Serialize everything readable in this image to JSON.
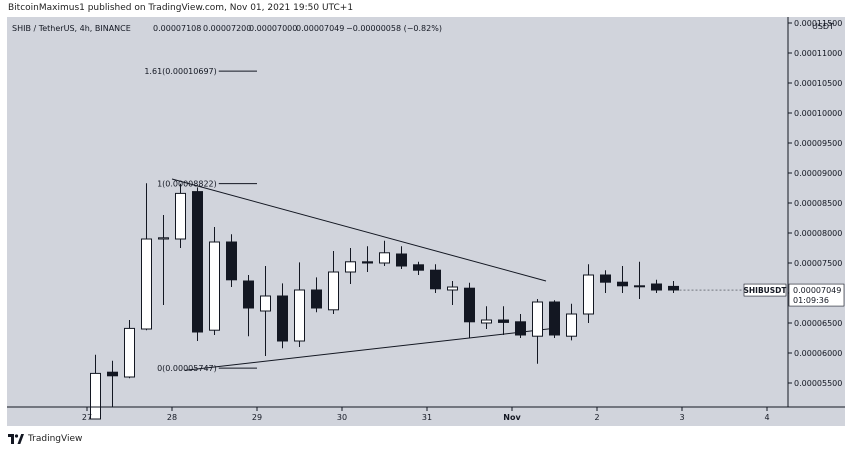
{
  "header": {
    "publish_line": "BitcoinMaximus1 published on TradingView.com, Nov 01, 2021 19:50 UTC+1"
  },
  "legend": {
    "symbol": "SHIB / TetherUS, 4h, BINANCE",
    "open": "0.00007108",
    "high": "0.00007200",
    "low": "0.00007000",
    "close": "0.00007049",
    "change": "−0.00000058 (−0.82%)"
  },
  "price_axis": {
    "currency": "USDT",
    "ticks": [
      "0.00011500",
      "0.00011000",
      "0.00010500",
      "0.00010000",
      "0.00009500",
      "0.00009000",
      "0.00008500",
      "0.00008000",
      "0.00007500",
      "0.00007000",
      "0.00006500",
      "0.00006000",
      "0.00005500"
    ],
    "symbol_tag": "SHIBUSDT",
    "last_price": "0.00007049",
    "countdown": "01:09:36"
  },
  "time_axis": {
    "ticks": [
      "27",
      "28",
      "29",
      "30",
      "31",
      "Nov",
      "2",
      "3",
      "4"
    ]
  },
  "fib_levels": [
    {
      "label": "1.61(0.00010697)"
    },
    {
      "label": "1(0.00008822)"
    },
    {
      "label": "0(0.00005747)"
    }
  ],
  "footer": {
    "brand": "TradingView"
  },
  "colors": {
    "background": "#d1d4dc",
    "bull": "#ffffff",
    "bear": "#131722",
    "line": "#131722"
  },
  "chart_data": {
    "type": "candlestick",
    "title": "SHIB / TetherUS, 4h, BINANCE",
    "ylabel": "USDT",
    "ylim": [
      5.1e-05,
      0.000116
    ],
    "x_unit_note": "x in days from 27 Oct 2021, one candle per 4h",
    "candles": [
      {
        "x": 0.1,
        "open": 4.9e-05,
        "high": 5.97e-05,
        "low": 4.9e-05,
        "close": 5.66e-05
      },
      {
        "x": 0.3,
        "open": 5.68e-05,
        "high": 5.87e-05,
        "low": 5.1e-05,
        "close": 5.62e-05
      },
      {
        "x": 0.5,
        "open": 5.6e-05,
        "high": 6.55e-05,
        "low": 5.58e-05,
        "close": 6.41e-05
      },
      {
        "x": 0.7,
        "open": 6.4e-05,
        "high": 8.83e-05,
        "low": 6.38e-05,
        "close": 7.9e-05
      },
      {
        "x": 0.9,
        "open": 7.9e-05,
        "high": 8.3e-05,
        "low": 6.8e-05,
        "close": 7.92e-05
      },
      {
        "x": 1.1,
        "open": 7.9e-05,
        "high": 8.82e-05,
        "low": 7.75e-05,
        "close": 8.66e-05
      },
      {
        "x": 1.3,
        "open": 8.69e-05,
        "high": 8.76e-05,
        "low": 6.2e-05,
        "close": 6.35e-05
      },
      {
        "x": 1.5,
        "open": 6.38e-05,
        "high": 8.1e-05,
        "low": 6.3e-05,
        "close": 7.85e-05
      },
      {
        "x": 1.7,
        "open": 7.85e-05,
        "high": 7.98e-05,
        "low": 7.1e-05,
        "close": 7.22e-05
      },
      {
        "x": 1.9,
        "open": 7.2e-05,
        "high": 7.3e-05,
        "low": 6.28e-05,
        "close": 6.75e-05
      },
      {
        "x": 2.1,
        "open": 6.7e-05,
        "high": 7.45e-05,
        "low": 5.95e-05,
        "close": 6.95e-05
      },
      {
        "x": 2.3,
        "open": 6.95e-05,
        "high": 7.16e-05,
        "low": 6.08e-05,
        "close": 6.2e-05
      },
      {
        "x": 2.5,
        "open": 6.2e-05,
        "high": 7.51e-05,
        "low": 6.1e-05,
        "close": 7.05e-05
      },
      {
        "x": 2.7,
        "open": 7.05e-05,
        "high": 7.26e-05,
        "low": 6.68e-05,
        "close": 6.75e-05
      },
      {
        "x": 2.9,
        "open": 6.72e-05,
        "high": 7.7e-05,
        "low": 6.65e-05,
        "close": 7.35e-05
      },
      {
        "x": 3.1,
        "open": 7.35e-05,
        "high": 7.75e-05,
        "low": 7.15e-05,
        "close": 7.52e-05
      },
      {
        "x": 3.3,
        "open": 7.52e-05,
        "high": 7.78e-05,
        "low": 7.35e-05,
        "close": 7.5e-05
      },
      {
        "x": 3.5,
        "open": 7.5e-05,
        "high": 7.87e-05,
        "low": 7.45e-05,
        "close": 7.67e-05
      },
      {
        "x": 3.7,
        "open": 7.65e-05,
        "high": 7.78e-05,
        "low": 7.4e-05,
        "close": 7.45e-05
      },
      {
        "x": 3.9,
        "open": 7.47e-05,
        "high": 7.52e-05,
        "low": 7.3e-05,
        "close": 7.38e-05
      },
      {
        "x": 4.1,
        "open": 7.38e-05,
        "high": 7.48e-05,
        "low": 7e-05,
        "close": 7.07e-05
      },
      {
        "x": 4.3,
        "open": 7.05e-05,
        "high": 7.2e-05,
        "low": 6.8e-05,
        "close": 7.1e-05
      },
      {
        "x": 4.5,
        "open": 7.08e-05,
        "high": 7.17e-05,
        "low": 6.25e-05,
        "close": 6.52e-05
      },
      {
        "x": 4.7,
        "open": 6.5e-05,
        "high": 6.78e-05,
        "low": 6.4e-05,
        "close": 6.55e-05
      },
      {
        "x": 4.9,
        "open": 6.55e-05,
        "high": 6.78e-05,
        "low": 6.3e-05,
        "close": 6.51e-05
      },
      {
        "x": 5.1,
        "open": 6.52e-05,
        "high": 6.65e-05,
        "low": 6.25e-05,
        "close": 6.3e-05
      },
      {
        "x": 5.3,
        "open": 6.28e-05,
        "high": 6.9e-05,
        "low": 5.82e-05,
        "close": 6.85e-05
      },
      {
        "x": 5.5,
        "open": 6.85e-05,
        "high": 6.88e-05,
        "low": 6.25e-05,
        "close": 6.3e-05
      },
      {
        "x": 5.7,
        "open": 6.28e-05,
        "high": 6.82e-05,
        "low": 6.21e-05,
        "close": 6.65e-05
      },
      {
        "x": 5.9,
        "open": 6.65e-05,
        "high": 7.48e-05,
        "low": 6.5e-05,
        "close": 7.3e-05
      },
      {
        "x": 6.1,
        "open": 7.3e-05,
        "high": 7.38e-05,
        "low": 7e-05,
        "close": 7.18e-05
      },
      {
        "x": 6.3,
        "open": 7.18e-05,
        "high": 7.45e-05,
        "low": 7e-05,
        "close": 7.12e-05
      },
      {
        "x": 6.5,
        "open": 7.12e-05,
        "high": 7.52e-05,
        "low": 6.9e-05,
        "close": 7.12e-05
      },
      {
        "x": 6.7,
        "open": 7.15e-05,
        "high": 7.22e-05,
        "low": 7e-05,
        "close": 7.05e-05
      },
      {
        "x": 6.9,
        "open": 7.11e-05,
        "high": 7.2e-05,
        "low": 7e-05,
        "close": 7.05e-05
      }
    ],
    "trendlines": [
      {
        "x1": 1.0,
        "y1": 8.9e-05,
        "x2": 5.4,
        "y2": 7.2e-05
      },
      {
        "x1": 1.15,
        "y1": 5.71e-05,
        "x2": 5.55,
        "y2": 6.42e-05
      }
    ],
    "fibs": [
      {
        "level": "1.61",
        "value": 0.00010697,
        "x1": 1.55,
        "x2": 2.0
      },
      {
        "level": "1",
        "value": 8.822e-05,
        "x1": 1.55,
        "x2": 2.0
      },
      {
        "level": "0",
        "value": 5.747e-05,
        "x1": 1.55,
        "x2": 2.0
      }
    ],
    "last_price": 7.049e-05
  }
}
